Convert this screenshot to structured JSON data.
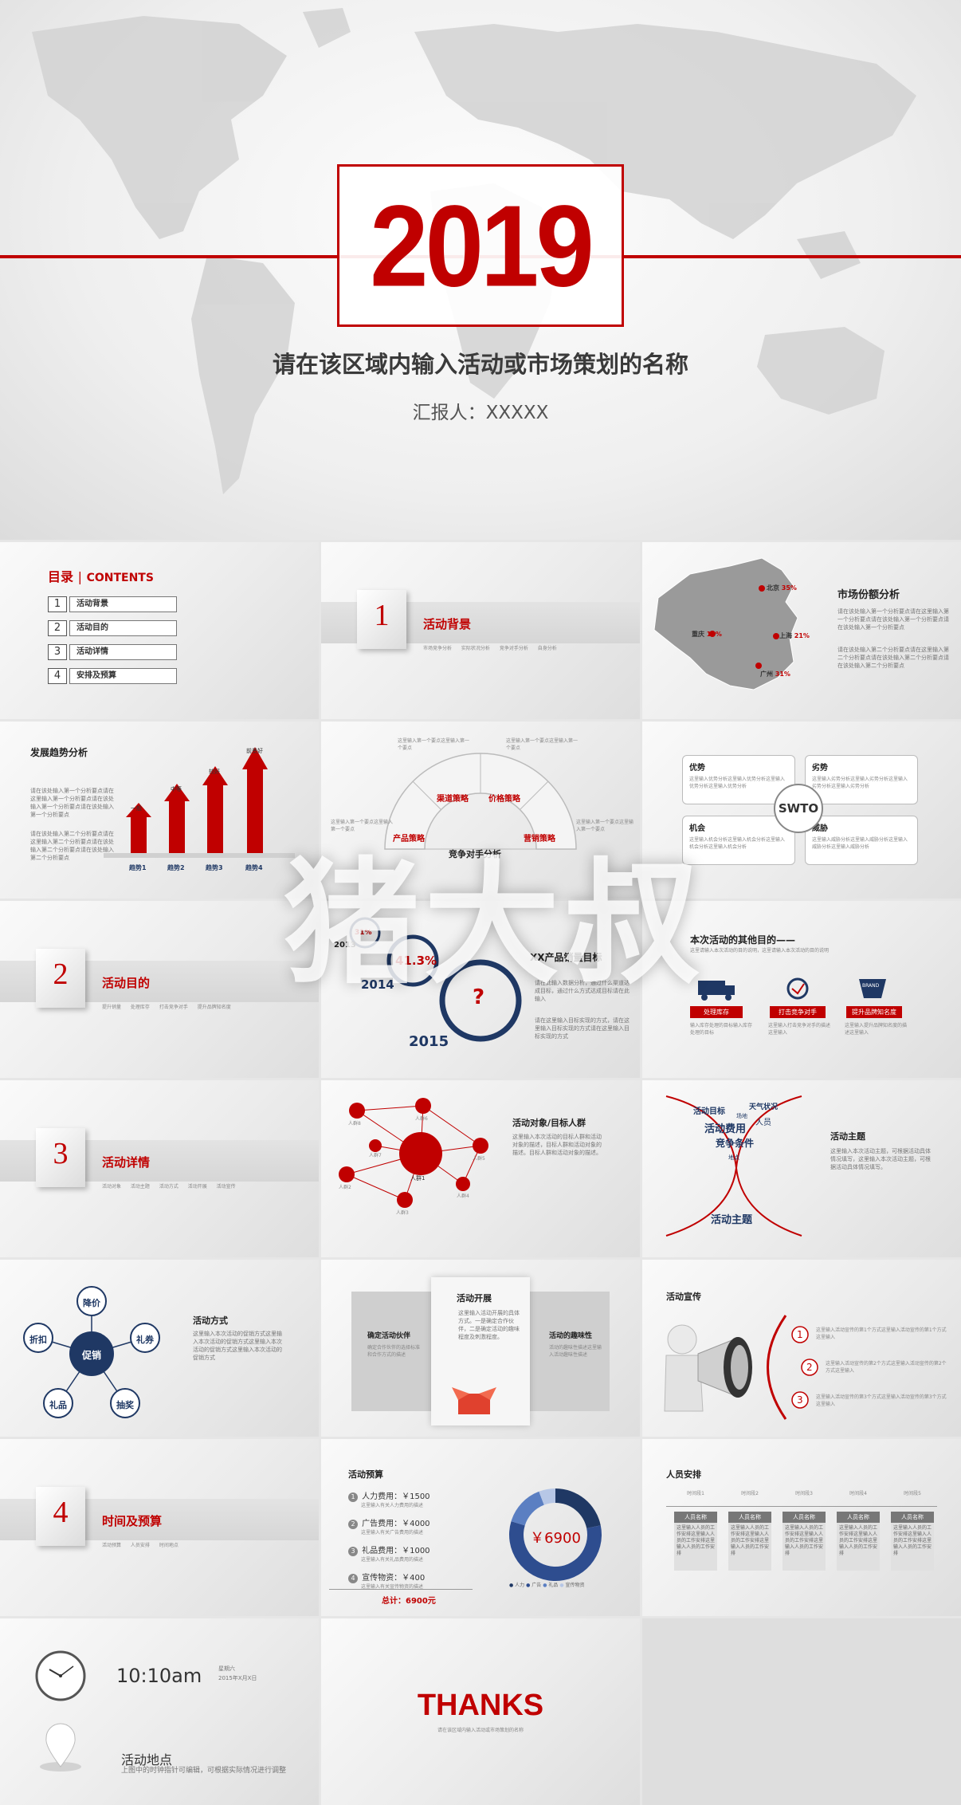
{
  "hero": {
    "year": "2019",
    "title": "请在该区域内输入活动或市场策划的名称",
    "reporter": "汇报人：XXXXX"
  },
  "toc": {
    "title_cn": "目录",
    "title_en": "CONTENTS",
    "items": [
      {
        "num": "1",
        "label": "活动背景"
      },
      {
        "num": "2",
        "label": "活动目的"
      },
      {
        "num": "3",
        "label": "活动详情"
      },
      {
        "num": "4",
        "label": "安排及预算"
      }
    ]
  },
  "section1": {
    "num": "1",
    "title": "活动背景",
    "sub": "市场竞争分析   实际状况分析   竞争对手分析   自身分析"
  },
  "market_share": {
    "title": "市场份额分析",
    "cities": [
      {
        "name": "北京",
        "value": "35%"
      },
      {
        "name": "重庆",
        "value": "13%"
      },
      {
        "name": "上海",
        "value": "21%"
      },
      {
        "name": "广州",
        "value": "31%"
      }
    ],
    "note1": "请在该处输入第一个分析要点请在这里输入第一个分析要点请在该处输入第一个分析要点请在该处输入第一个分析要点",
    "note2": "请在该处输入第二个分析要点请在这里输入第二个分析要点请在该处输入第二个分析要点请在该处输入第二个分析要点"
  },
  "trend": {
    "title": "发展趋势分析",
    "bars": [
      {
        "tag": "一般",
        "label": "趋势1"
      },
      {
        "tag": "中等",
        "label": "趋势2"
      },
      {
        "tag": "较好",
        "label": "趋势3"
      },
      {
        "tag": "前景好",
        "label": "趋势4"
      }
    ],
    "note1": "请在该处输入第一个分析要点请在这里输入第一个分析要点请在该处输入第一个分析要点请在该处输入第一个分析要点",
    "note2": "请在该处输入第二个分析要点请在这里输入第二个分析要点请在该处输入第二个分析要点请在该处输入第二个分析要点"
  },
  "competitor": {
    "center": "竞争对手分析",
    "segments": [
      "产品策略",
      "渠道策略",
      "价格策略",
      "营销策略"
    ],
    "point": "这里输入第一个要点这里输入第一个要点"
  },
  "swot": {
    "center": "SWTO",
    "boxes": [
      {
        "title": "优势",
        "text": "这里输入优势分析这里输入优势分析这里输入优势分析这里输入优势分析"
      },
      {
        "title": "劣势",
        "text": "这里输入劣势分析这里输入劣势分析这里输入劣势分析这里输入劣势分析"
      },
      {
        "title": "机会",
        "text": "这里输入机会分析这里输入机会分析这里输入机会分析这里输入机会分析"
      },
      {
        "title": "威胁",
        "text": "这里输入威胁分析这里输入威胁分析这里输入威胁分析这里输入威胁分析"
      }
    ]
  },
  "section2": {
    "num": "2",
    "title": "活动目的",
    "sub": "提升销量   处理库存   打击竞争对手   提升品牌知名度"
  },
  "sales_goal": {
    "title": "XX产品销量目标",
    "years": [
      "2013",
      "2014",
      "2015"
    ],
    "pct2013": "31%",
    "pct2014": "41.3%",
    "q": "?",
    "note1": "请在此输入数据分析，通过什么渠道达成目标，通过什么方式达成目标请在此输入",
    "note2": "请在这里输入目标实现的方式，请在这里输入目标实现的方式请在这里输入目标实现的方式"
  },
  "other_goals": {
    "title": "本次活动的其他目的——",
    "sub": "这里请输入本次活动的目的说明，这里请输入本次活动的目的说明",
    "items": [
      {
        "label": "处理库存",
        "text": "输入库存处理的目标输入库存处理的目标"
      },
      {
        "label": "打击竞争对手",
        "text": "这里输入打击竞争对手的描述这里输入"
      },
      {
        "label": "提升品牌知名度",
        "text": "这里输入提升品牌知名度的描述这里输入"
      }
    ],
    "badge": "BRAND"
  },
  "section3": {
    "num": "3",
    "title": "活动详情",
    "sub": "活动对象   活动主题   活动方式   活动开展   活动宣传"
  },
  "audience": {
    "title": "活动对象/目标人群",
    "center": "人群1",
    "nodes": [
      "人群8",
      "人群6",
      "人群7",
      "人群5",
      "人群2",
      "人群4",
      "人群3"
    ],
    "text": "这里输入本次活动的目标人群和活动对象的描述，目标人群和活动对象的描述。目标人群和活动对象的描述。"
  },
  "theme": {
    "title": "活动主题",
    "words": [
      "活动目标",
      "天气状况",
      "场地",
      "人员",
      "活动费用",
      "竞争条件",
      "地点"
    ],
    "main": "活动主题",
    "text": "这里输入本次活动主题，可根据活动具体情况填写，这里输入本次活动主题，可根据活动具体情况填写。"
  },
  "method": {
    "title": "活动方式",
    "center": "促销",
    "items": [
      "降价",
      "礼券",
      "抽奖",
      "礼品",
      "折扣"
    ],
    "text": "这里输入本次活动的促销方式这里输入本次活动的促销方式这里输入本次活动的促销方式这里输入本次活动的促销方式"
  },
  "launch": {
    "title": "活动开展",
    "left": "确定活动伙伴",
    "right": "活动的趣味性",
    "center_text": "这里输入活动开展的具体方式。一是确定合作伙伴，二是确定活动的趣味程度及刺激程度。",
    "left_text": "确定合作伙伴的选择标准和合作方式的描述",
    "right_text": "活动的趣味性描述这里输入活动趣味性描述"
  },
  "promotion": {
    "title": "活动宣传",
    "items": [
      {
        "num": "1",
        "text": "这里输入活动宣传的第1个方式这里输入活动宣传的第1个方式这里输入"
      },
      {
        "num": "2",
        "text": "这里输入活动宣传的第2个方式这里输入活动宣传的第2个方式这里输入"
      },
      {
        "num": "3",
        "text": "这里输入活动宣传的第3个方式这里输入活动宣传的第3个方式这里输入"
      }
    ]
  },
  "section4": {
    "num": "4",
    "title": "时间及预算",
    "sub": "活动预算   人员安排   时间地点"
  },
  "budget": {
    "title": "活动预算",
    "items": [
      {
        "num": "1",
        "label": "人力费用：￥1500",
        "desc": "这里输入有关人力费用的描述"
      },
      {
        "num": "2",
        "label": "广告费用：￥4000",
        "desc": "这里输入有关广告费用的描述"
      },
      {
        "num": "3",
        "label": "礼品费用：￥1000",
        "desc": "这里输入有关礼品费用的描述"
      },
      {
        "num": "4",
        "label": "宣传物资：￥400",
        "desc": "这里输入有关宣传物资的描述"
      }
    ],
    "total": "总计：6900元",
    "donut_label": "￥6900",
    "legend": [
      "人力",
      "广告",
      "礼品",
      "宣传物资"
    ],
    "colors": [
      "#1f3864",
      "#2e4d8f",
      "#5b7fc2",
      "#b7c7e6"
    ]
  },
  "chart_data": {
    "type": "pie",
    "categories": [
      "人力",
      "广告",
      "礼品",
      "宣传物资"
    ],
    "values": [
      1500,
      4000,
      1000,
      400
    ],
    "title": ""
  },
  "staff": {
    "title": "人员安排",
    "periods": [
      "时间段1",
      "时间段2",
      "时间段3",
      "时间段4",
      "时间段5"
    ],
    "name": "人员名称",
    "desc": "这里输入人员的工作安排这里输入人员的工作安排这里输入人员的工作安排"
  },
  "time": {
    "clock": "10:10am",
    "weekday": "星期六",
    "date": "2015年X月X日"
  },
  "venue": {
    "title": "活动地点",
    "text": "上图中的时钟指针可编辑，可根据实际情况进行调整"
  },
  "thanks": {
    "title": "THANKS",
    "sub": "请在该区域内输入活动或市场策划的名称"
  },
  "watermark": "猪大叔"
}
